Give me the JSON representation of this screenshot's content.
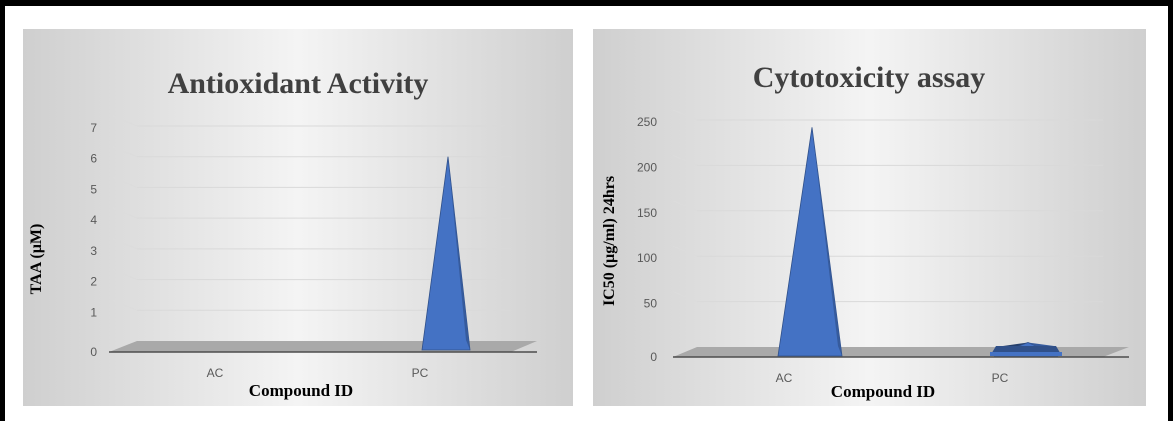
{
  "chart_data": [
    {
      "type": "bar",
      "bar_shape": "3d-pyramid",
      "title": "Antioxidant Activity",
      "xlabel": "Compound  ID",
      "ylabel": "TAA (µM)",
      "categories": [
        "AC",
        "PC"
      ],
      "values": [
        0,
        6
      ],
      "ylim": [
        0,
        7
      ],
      "yticks": [
        "0",
        "1",
        "2",
        "3",
        "4",
        "5",
        "6",
        "7"
      ],
      "grid": true,
      "bar_color": "#4472c4"
    },
    {
      "type": "bar",
      "bar_shape": "3d-pyramid",
      "title": "Cytotoxicity assay",
      "xlabel": "Compound  ID",
      "ylabel": "IC50  (µg/ml)  24hrs",
      "categories": [
        "AC",
        "PC"
      ],
      "values": [
        242,
        5
      ],
      "ylim": [
        0,
        250
      ],
      "yticks": [
        "0",
        "50",
        "100",
        "150",
        "200",
        "250"
      ],
      "grid": true,
      "bar_color": "#4472c4"
    }
  ]
}
